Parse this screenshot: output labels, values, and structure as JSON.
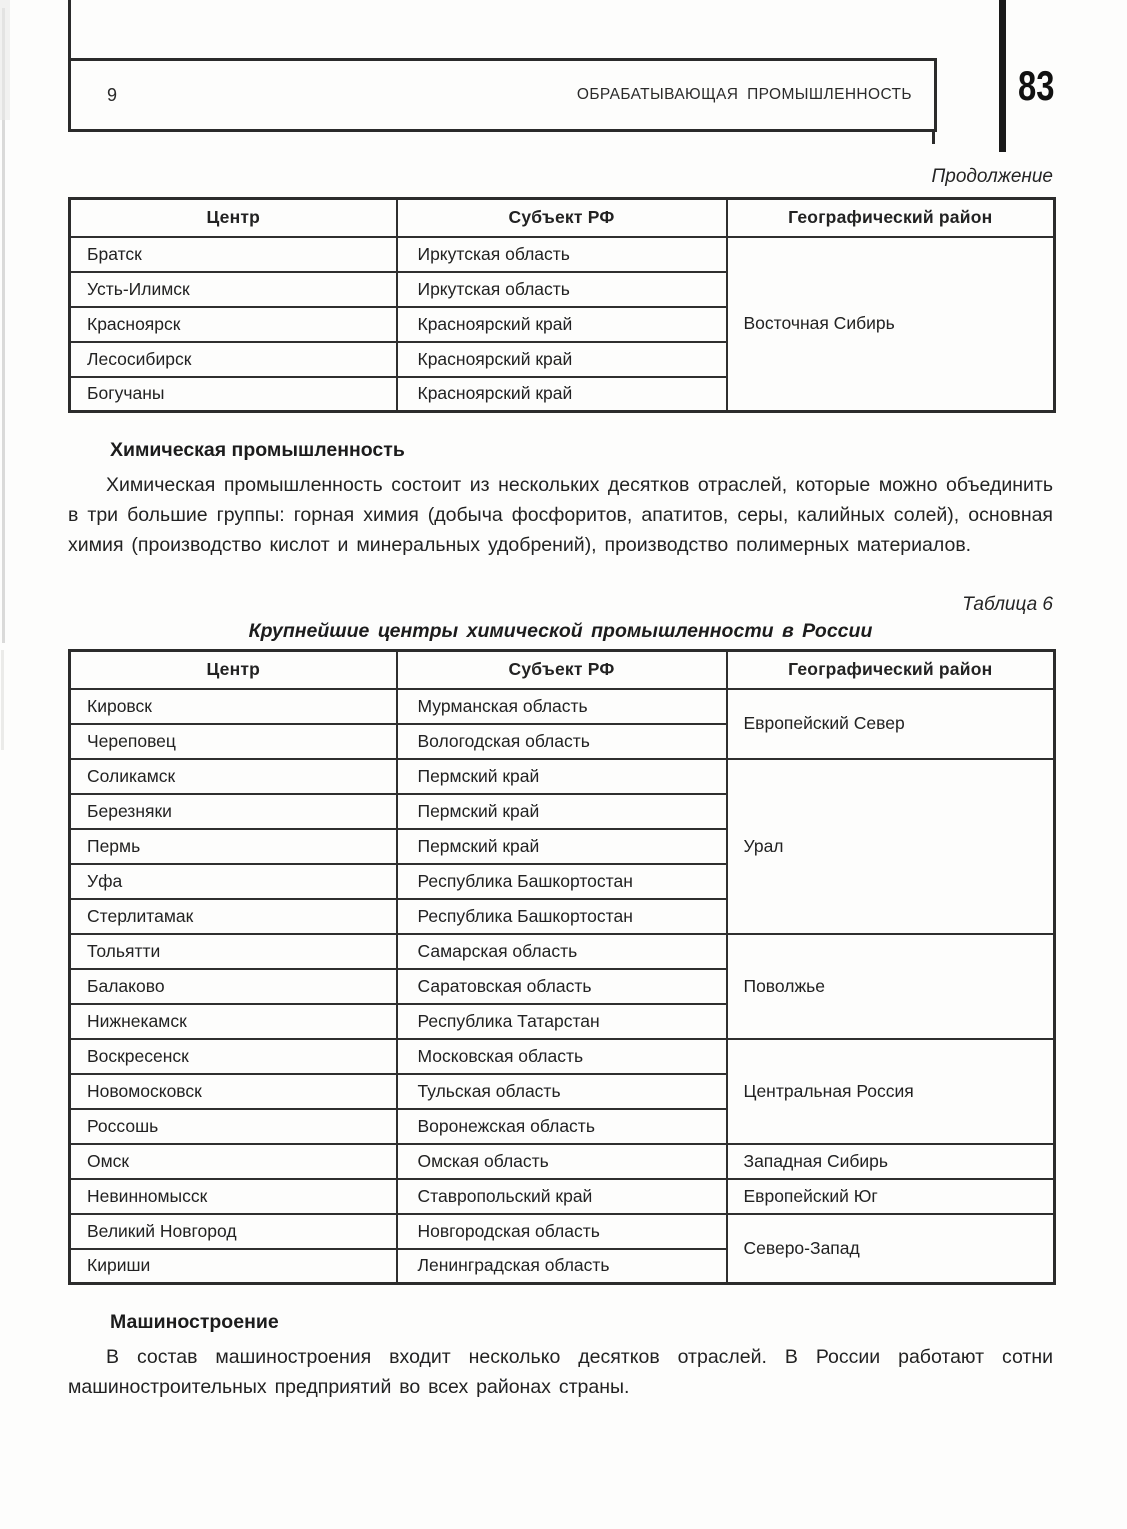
{
  "page": {
    "page_number_left": "9",
    "running_title": "ОБРАБАТЫВАЮЩАЯ ПРОМЫШЛЕННОСТЬ",
    "page_number_right": "83",
    "continuation_label": "Продолжение"
  },
  "tables": {
    "continuation": {
      "headers": [
        "Центр",
        "Субъект РФ",
        "Географический район"
      ],
      "rows": [
        {
          "center": "Братск",
          "subject": "Иркутская область",
          "region": "Восточная Сибирь",
          "region_span": 5
        },
        {
          "center": "Усть-Илимск",
          "subject": "Иркутская область"
        },
        {
          "center": "Красноярск",
          "subject": "Красноярский край"
        },
        {
          "center": "Лесосибирск",
          "subject": "Красноярский край"
        },
        {
          "center": "Богучаны",
          "subject": "Красноярский край"
        }
      ]
    },
    "table6": {
      "caption": "Таблица 6",
      "title": "Крупнейшие центры химической промышленности в России",
      "headers": [
        "Центр",
        "Субъект РФ",
        "Географический район"
      ],
      "rows": [
        {
          "center": "Кировск",
          "subject": "Мурманская область",
          "region": "Европейский Север",
          "region_span": 2
        },
        {
          "center": "Череповец",
          "subject": "Вологодская область"
        },
        {
          "center": "Соликамск",
          "subject": "Пермский край",
          "region": "Урал",
          "region_span": 5
        },
        {
          "center": "Березняки",
          "subject": "Пермский край"
        },
        {
          "center": "Пермь",
          "subject": "Пермский край"
        },
        {
          "center": "Уфа",
          "subject": "Республика Башкортостан"
        },
        {
          "center": "Стерлитамак",
          "subject": "Республика Башкортостан"
        },
        {
          "center": "Тольятти",
          "subject": "Самарская область",
          "region": "Поволжье",
          "region_span": 3
        },
        {
          "center": "Балаково",
          "subject": "Саратовская область"
        },
        {
          "center": "Нижнекамск",
          "subject": "Республика Татарстан"
        },
        {
          "center": "Воскресенск",
          "subject": "Московская область",
          "region": "Центральная Россия",
          "region_span": 3
        },
        {
          "center": "Новомосковск",
          "subject": "Тульская область"
        },
        {
          "center": "Россошь",
          "subject": "Воронежская область"
        },
        {
          "center": "Омск",
          "subject": "Омская область",
          "region": "Западная Сибирь",
          "region_span": 1
        },
        {
          "center": "Невинномысск",
          "subject": "Ставропольский край",
          "region": "Европейский Юг",
          "region_span": 1
        },
        {
          "center": "Великий Новгород",
          "subject": "Новгородская область",
          "region": "Северо-Запад",
          "region_span": 2
        },
        {
          "center": "Кириши",
          "subject": "Ленинградская область"
        }
      ]
    }
  },
  "chemical_section": {
    "heading": "Химическая промышленность",
    "paragraph": "Химическая промышленность состоит из нескольких десятков отраслей, которые можно объединить в три большие группы: горная химия (добыча фосфоритов, апатитов, серы, калийных солей), основная химия (производство кислот и минеральных удобрений), производство полимерных материалов."
  },
  "machinery_section": {
    "heading": "Машиностроение",
    "paragraph": "В состав машиностроения входит несколько десятков отраслей. В России работают сотни машиностроительных предприятий во всех районах страны."
  }
}
